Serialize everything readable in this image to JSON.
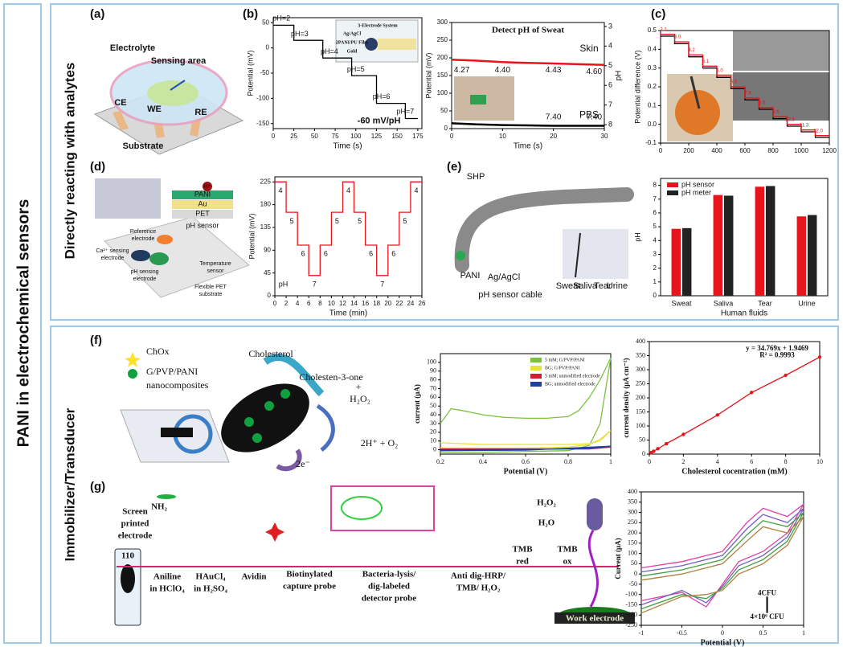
{
  "figure": {
    "side_title": "PANI in electrochemical sensors",
    "sections": [
      "Directly reacting with analytes",
      "Immobilizer/Transducer"
    ],
    "panel_letters": [
      "(a)",
      "(b)",
      "(c)",
      "(d)",
      "(e)",
      "(f)",
      "(g)"
    ]
  },
  "labels": {
    "a": [
      "Electrolyte",
      "Sensing area",
      "CE",
      "WE",
      "RE",
      "Substrate"
    ],
    "b": [
      "3-Electrode System",
      "Ag/AgCl",
      "2PANI/PU Film",
      "Gold"
    ],
    "d": [
      "PANI",
      "Au",
      "PET",
      "pH sensor",
      "Reference",
      "electrode",
      "Ca²⁺ sensing",
      "electrode",
      "pH sensing",
      "electrode",
      "Temperature",
      "sensor",
      "Flexible PET",
      "substrate",
      "H⁺"
    ],
    "e": [
      "SHP",
      "PANI",
      "Ag/AgCl",
      "pH sensor cable",
      "Sweat",
      "Saliva",
      "Tear",
      "Urine"
    ],
    "f": [
      "ChOx",
      "G/PVP/PANI",
      "nanocomposites",
      "Cholesterol",
      "Cholesten-3-one",
      "+",
      "H₂O₂",
      "2H⁺ + O₂",
      "2e⁻"
    ],
    "g": [
      "Screen",
      "printed",
      "electrode",
      "110",
      "NH₂",
      "Aniline",
      "in HClO₄",
      "HAuCl₄",
      "in H₂SO₄",
      "Avidin",
      "Biotinylated",
      "capture probe",
      "Bacteria-lysis/",
      "dig-labeled",
      "detector probe",
      "Anti dig-HRP/",
      "TMB/ H₂O₂",
      "H₂O₂",
      "H₂O",
      "TMB",
      "red",
      "TMB",
      "ox",
      "Work electrode"
    ]
  },
  "chart_data": [
    {
      "type": "line",
      "x_label": "Time (s)",
      "y_label": "Potential (mV)",
      "xlim": [
        0,
        180
      ],
      "xticks": [
        0,
        25,
        50,
        75,
        100,
        125,
        150,
        175
      ],
      "ylim": [
        -160,
        60
      ],
      "yticks": [
        -150,
        -100,
        -50,
        0,
        50
      ],
      "x": [
        0,
        25,
        25,
        60,
        60,
        95,
        95,
        125,
        125,
        160,
        160,
        175
      ],
      "series": [
        {
          "color": "#000000",
          "values": [
            45,
            45,
            15,
            15,
            -20,
            -20,
            -55,
            -55,
            -110,
            -110,
            -140,
            -140
          ]
        }
      ],
      "annotations": [
        "pH=2",
        "pH=3",
        "pH=4",
        "pH=5",
        "pH=6",
        "pH=7",
        "-60 mV/pH"
      ]
    },
    {
      "type": "line",
      "title": "Detect pH of Sweat",
      "x_label": "Time (s)",
      "y_label": "Potential (mV)",
      "y2_label": "pH",
      "xlim": [
        0,
        30
      ],
      "xticks": [
        0,
        10,
        20,
        30
      ],
      "ylim": [
        0,
        300
      ],
      "yticks": [
        0,
        50,
        100,
        150,
        200,
        250,
        300
      ],
      "y2lim": [
        8.2,
        2.8
      ],
      "y2ticks": [
        3,
        4,
        5,
        6,
        7,
        8
      ],
      "x": [
        0,
        5,
        10,
        15,
        20,
        25,
        30
      ],
      "series": [
        {
          "color": "#e8141b",
          "values": [
            195,
            192,
            188,
            186,
            184,
            182,
            180
          ]
        },
        {
          "color": "#000000",
          "values": [
            15,
            12,
            10,
            9,
            8,
            8,
            8
          ]
        }
      ],
      "annotations": [
        "Skin",
        "PBS",
        "4.27",
        "4.40",
        "4.43",
        "4.60",
        "7.40",
        "7.40"
      ]
    },
    {
      "type": "line",
      "y_label": "Potential difference (V)",
      "xlim": [
        0,
        1200
      ],
      "xticks": [
        0,
        200,
        400,
        600,
        800,
        1000,
        1200
      ],
      "ylim": [
        -0.1,
        0.5
      ],
      "yticks": [
        -0.1,
        {
          "value": 0,
          "label": "0.0"
        },
        0.1,
        0.2,
        0.3,
        0.4,
        0.5
      ],
      "x": [
        0,
        100,
        100,
        200,
        200,
        300,
        300,
        400,
        400,
        500,
        500,
        600,
        600,
        700,
        700,
        800,
        800,
        900,
        900,
        1000,
        1000,
        1100,
        1100,
        1200
      ],
      "series": [
        {
          "color": "#000000",
          "values": [
            0.47,
            0.47,
            0.43,
            0.43,
            0.36,
            0.36,
            0.3,
            0.3,
            0.25,
            0.25,
            0.19,
            0.19,
            0.13,
            0.13,
            0.08,
            0.08,
            0.03,
            0.03,
            -0.01,
            -0.01,
            -0.04,
            -0.04,
            -0.07,
            -0.07
          ]
        },
        {
          "color": "#e8141b",
          "values": [
            0.48,
            0.48,
            0.44,
            0.44,
            0.37,
            0.37,
            0.31,
            0.31,
            0.26,
            0.26,
            0.2,
            0.2,
            0.14,
            0.14,
            0.09,
            0.09,
            0.04,
            0.04,
            0.0,
            0.0,
            -0.03,
            -0.03,
            -0.06,
            -0.06
          ]
        }
      ],
      "annotations": [
        "2.1",
        "3.0",
        "4.2",
        "5.1",
        "6.0",
        "6.9",
        "7.6",
        "8.6",
        "9.5",
        "10.5",
        "11.3",
        "12.0"
      ]
    },
    {
      "type": "line",
      "x_label": "Time (min)",
      "y_label": "Potential (mV)",
      "xlim": [
        0,
        26
      ],
      "xticks": [
        0,
        2,
        4,
        6,
        8,
        10,
        12,
        14,
        16,
        18,
        20,
        22,
        24,
        26
      ],
      "ylim": [
        0,
        235
      ],
      "yticks": [
        0,
        45,
        90,
        135,
        180,
        225
      ],
      "x": [
        0,
        2,
        2,
        4,
        4,
        6,
        6,
        8,
        8,
        10,
        10,
        12,
        12,
        14,
        14,
        16,
        16,
        18,
        18,
        20,
        20,
        22,
        22,
        24,
        24,
        26
      ],
      "series": [
        {
          "color": "#e8141b",
          "values": [
            225,
            225,
            165,
            165,
            100,
            100,
            40,
            40,
            100,
            100,
            165,
            165,
            225,
            225,
            165,
            165,
            100,
            100,
            40,
            40,
            100,
            100,
            165,
            165,
            225,
            225
          ]
        }
      ],
      "annotations": [
        "4",
        "5",
        "6",
        "7",
        "6",
        "5",
        "4",
        "5",
        "6",
        "7",
        "6",
        "5",
        "4",
        "pH"
      ]
    },
    {
      "type": "bar",
      "x_label": "Human fluids",
      "y_label": "pH",
      "categories": [
        "Sweat",
        "Saliva",
        "Tear",
        "Urine"
      ],
      "ylim": [
        0,
        8.5
      ],
      "yticks": [
        0,
        1,
        2,
        3,
        4,
        5,
        6,
        7,
        8
      ],
      "legend": "upper left",
      "series": [
        {
          "name": "pH sensor",
          "color": "#e8141b",
          "values": [
            4.85,
            7.3,
            7.9,
            5.75
          ]
        },
        {
          "name": "pH meter",
          "color": "#222222",
          "values": [
            4.9,
            7.25,
            7.95,
            5.85
          ]
        }
      ]
    },
    {
      "type": "line",
      "x_label": "Potential (V)",
      "y_label": "current (μA)",
      "xlim": [
        0.2,
        1
      ],
      "xticks": [
        0.2,
        0.4,
        0.6,
        0.8,
        1
      ],
      "ylim": [
        -5,
        110
      ],
      "yticks": [
        0,
        10,
        20,
        30,
        40,
        50,
        60,
        70,
        80,
        90,
        100
      ],
      "legend": "upper right",
      "series": [
        {
          "name": "5 mM; G/PVP/PANI",
          "color": "#7cc242",
          "x": [
            0.2,
            0.25,
            0.3,
            0.4,
            0.5,
            0.6,
            0.7,
            0.8,
            0.85,
            0.9,
            0.95,
            1.0,
            0.95,
            0.9,
            0.8,
            0.6,
            0.4,
            0.2
          ],
          "values": [
            30,
            47,
            45,
            40,
            37,
            36,
            36,
            38,
            45,
            60,
            80,
            105,
            30,
            5,
            -1,
            -2,
            -3,
            -3
          ]
        },
        {
          "name": "BG; G/PVP/PANI",
          "color": "#e8e040",
          "x": [
            0.2,
            0.4,
            0.6,
            0.8,
            0.9,
            0.95,
            1.0,
            0.95,
            0.9,
            0.8,
            0.6,
            0.4,
            0.2
          ],
          "values": [
            8,
            6,
            6,
            6,
            7,
            10,
            22,
            12,
            6,
            3,
            2,
            2,
            2
          ]
        },
        {
          "name": "5 mM; unmodified electrode",
          "color": "#d02030",
          "x": [
            0.2,
            0.6,
            0.9,
            1.0,
            0.6,
            0.2
          ],
          "values": [
            1,
            1,
            1,
            3,
            0,
            0
          ]
        },
        {
          "name": "BG; unmodified electrode",
          "color": "#2040a0",
          "x": [
            0.2,
            0.6,
            0.9,
            1.0,
            0.6,
            0.2
          ],
          "values": [
            0,
            0.5,
            1,
            4,
            -0.5,
            -1
          ]
        }
      ]
    },
    {
      "type": "scatter",
      "x_label": "Cholesterol cocentration (mM)",
      "y_label": "current density (μA cm⁻²)",
      "xlim": [
        0,
        10
      ],
      "xticks": [
        0,
        2,
        4,
        6,
        8,
        10
      ],
      "ylim": [
        0,
        400
      ],
      "yticks": [
        0,
        50,
        100,
        150,
        200,
        250,
        300,
        350,
        400
      ],
      "x": [
        0.1,
        0.25,
        0.5,
        1,
        2,
        4,
        6,
        8,
        10
      ],
      "series": [
        {
          "color": "#e8141b",
          "values": [
            5,
            10,
            19,
            37,
            70,
            139,
            219,
            280,
            345
          ]
        }
      ],
      "annotations": [
        "y = 34.769x + 1.9469",
        "R² = 0.9993"
      ]
    },
    {
      "type": "line",
      "x_label": "Potential (V)",
      "y_label": "Current (μA)",
      "xlim": [
        -1,
        1
      ],
      "xticks": [
        -1,
        -0.5,
        0,
        0.5,
        1
      ],
      "ylim": [
        -250,
        400
      ],
      "yticks": [
        -250,
        -200,
        -150,
        -100,
        -50,
        0,
        50,
        100,
        150,
        200,
        250,
        300,
        350,
        400
      ],
      "x": [
        -1,
        -0.5,
        0,
        0.3,
        0.5,
        0.8,
        1,
        0.8,
        0.5,
        0.2,
        0,
        -0.2,
        -0.5,
        -1
      ],
      "series": [
        {
          "color": "#e040a0",
          "values": [
            30,
            60,
            110,
            250,
            320,
            280,
            340,
            200,
            110,
            60,
            -50,
            -160,
            -90,
            -130
          ]
        },
        {
          "color": "#7060c0",
          "values": [
            10,
            40,
            90,
            220,
            290,
            250,
            320,
            180,
            90,
            40,
            -60,
            -140,
            -80,
            -150
          ]
        },
        {
          "color": "#40a040",
          "values": [
            -10,
            20,
            70,
            190,
            260,
            230,
            300,
            160,
            70,
            20,
            -70,
            -120,
            -100,
            -170
          ]
        },
        {
          "color": "#b08040",
          "values": [
            -30,
            0,
            50,
            160,
            230,
            200,
            280,
            140,
            50,
            0,
            -80,
            -100,
            -110,
            -190
          ]
        }
      ],
      "annotations": [
        "4CFU",
        "4×10⁶ CFU"
      ]
    }
  ]
}
